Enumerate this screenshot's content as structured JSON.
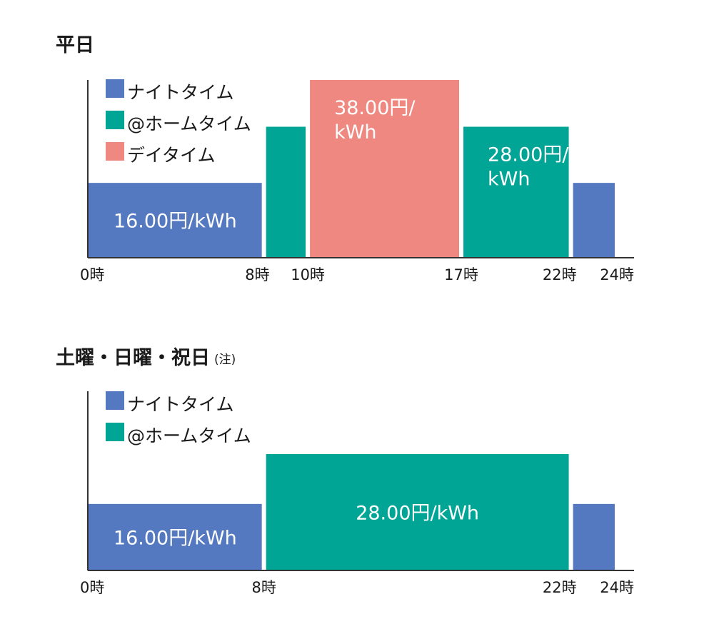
{
  "chart_data": [
    {
      "type": "bar",
      "title": "平日",
      "note": "",
      "x_unit": "hour",
      "xlim": [
        0,
        24
      ],
      "ticks": [
        {
          "hour": 0,
          "label": "0時"
        },
        {
          "hour": 8,
          "label": "8時"
        },
        {
          "hour": 10,
          "label": "10時"
        },
        {
          "hour": 17,
          "label": "17時"
        },
        {
          "hour": 22,
          "label": "22時"
        },
        {
          "hour": 24,
          "label": "24時"
        }
      ],
      "legend": [
        {
          "name": "ナイトタイム",
          "color": "#5479c1"
        },
        {
          "name": "@ホームタイム",
          "color": "#00a596"
        },
        {
          "name": "デイタイム",
          "color": "#ef8880"
        }
      ],
      "segments": [
        {
          "start": 0,
          "end": 8,
          "value": 16.0,
          "color": "#5479c1",
          "label": [
            "16.00円/kWh"
          ]
        },
        {
          "start": 8,
          "end": 10,
          "value": 28.0,
          "color": "#00a596",
          "label": []
        },
        {
          "start": 10,
          "end": 17,
          "value": 38.0,
          "color": "#ef8880",
          "label": [
            "38.00円/",
            "kWh"
          ]
        },
        {
          "start": 17,
          "end": 22,
          "value": 28.0,
          "color": "#00a596",
          "label": [
            "28.00円/",
            "kWh"
          ]
        },
        {
          "start": 22,
          "end": 24,
          "value": 16.0,
          "color": "#5479c1",
          "label": []
        }
      ]
    },
    {
      "type": "bar",
      "title": "土曜・日曜・祝日",
      "note": "(注)",
      "x_unit": "hour",
      "xlim": [
        0,
        24
      ],
      "ticks": [
        {
          "hour": 0,
          "label": "0時"
        },
        {
          "hour": 8,
          "label": "8時"
        },
        {
          "hour": 22,
          "label": "22時"
        },
        {
          "hour": 24,
          "label": "24時"
        }
      ],
      "legend": [
        {
          "name": "ナイトタイム",
          "color": "#5479c1"
        },
        {
          "name": "@ホームタイム",
          "color": "#00a596"
        }
      ],
      "segments": [
        {
          "start": 0,
          "end": 8,
          "value": 16.0,
          "color": "#5479c1",
          "label": [
            "16.00円/kWh"
          ]
        },
        {
          "start": 8,
          "end": 22,
          "value": 28.0,
          "color": "#00a596",
          "label": [
            "28.00円/kWh"
          ]
        },
        {
          "start": 22,
          "end": 24,
          "value": 16.0,
          "color": "#5479c1",
          "label": []
        }
      ]
    }
  ]
}
